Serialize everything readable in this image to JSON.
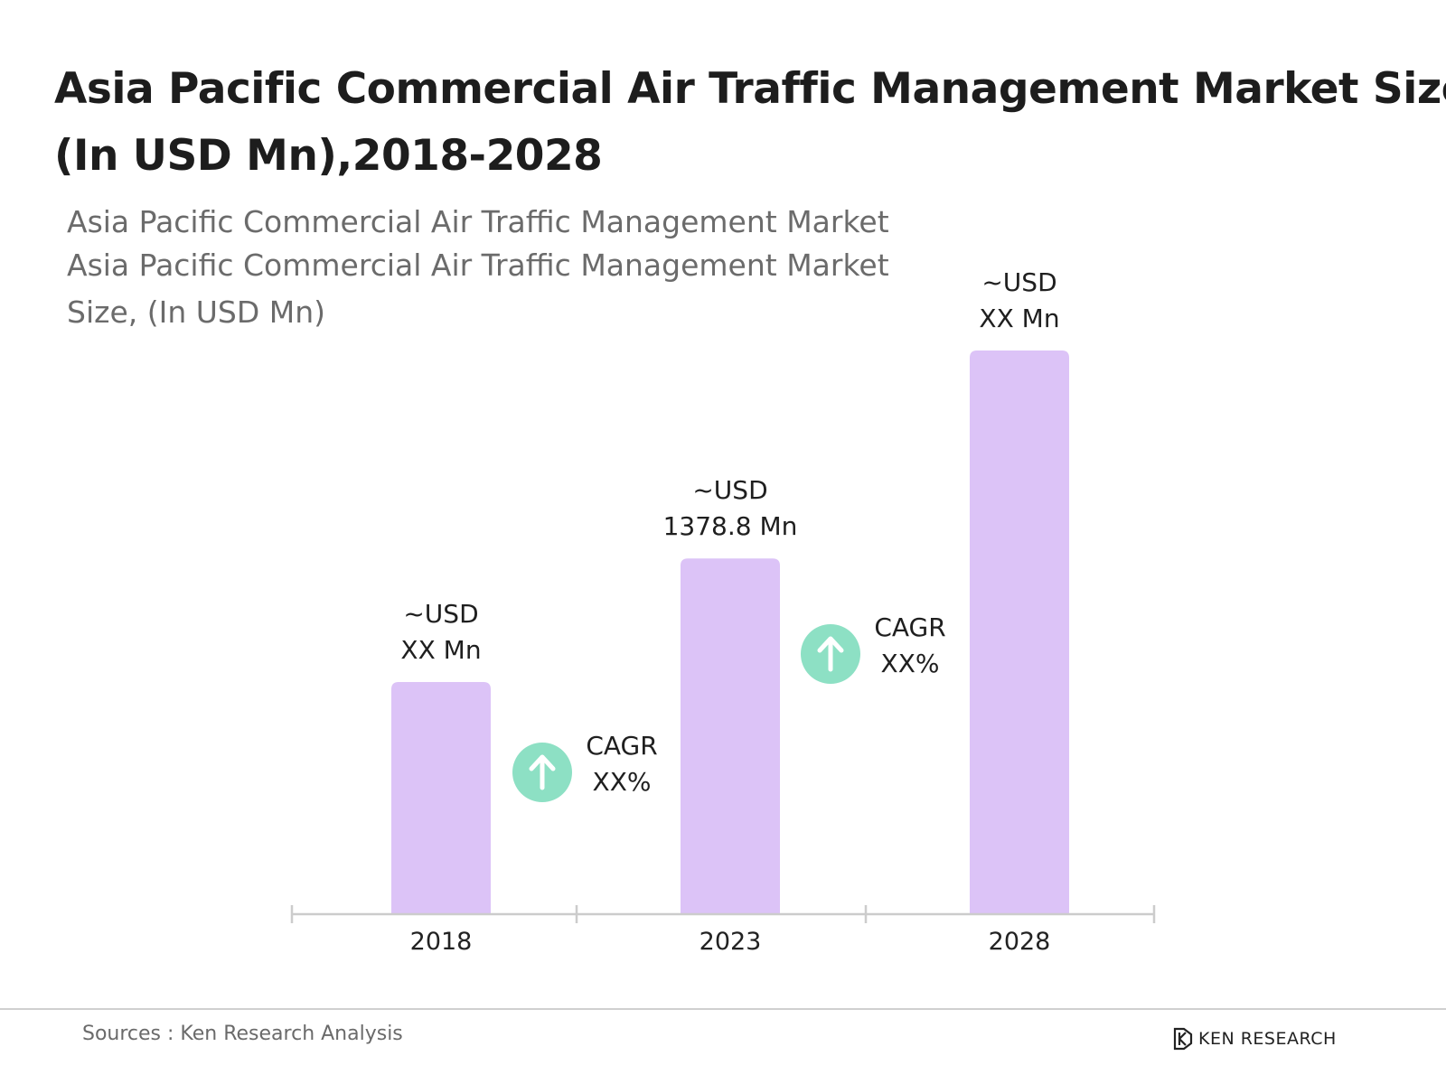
{
  "title_lines": [
    "Asia Pacific Commercial Air Traffic Management Market Size",
    "(In USD Mn),2018-2028"
  ],
  "subtitle_lines": [
    "Asia Pacific Commercial Air Traffic Management Market",
    "Asia Pacific Commercial Air Traffic Management Market",
    "Size, (In USD Mn)"
  ],
  "chart_data": {
    "type": "bar",
    "categories": [
      "2018",
      "2023",
      "2028"
    ],
    "values": [
      900,
      1378.8,
      2185
    ],
    "data_labels": [
      [
        "~USD",
        "XX Mn"
      ],
      [
        "~USD",
        "1378.8 Mn"
      ],
      [
        "~USD",
        "XX Mn"
      ]
    ],
    "annotations": [
      {
        "lines": [
          "CAGR",
          "XX%"
        ],
        "between": [
          "2018",
          "2023"
        ]
      },
      {
        "lines": [
          "CAGR",
          "XX%"
        ],
        "between": [
          "2023",
          "2028"
        ]
      }
    ],
    "ylim": [
      0,
      2185
    ],
    "grid": false,
    "legend": "none",
    "bar_color": "#dcc3f7",
    "cagr_icon_color": "#8de0c4"
  },
  "footer": {
    "source": "Sources : Ken Research Analysis",
    "brand": "KEN RESEARCH"
  }
}
